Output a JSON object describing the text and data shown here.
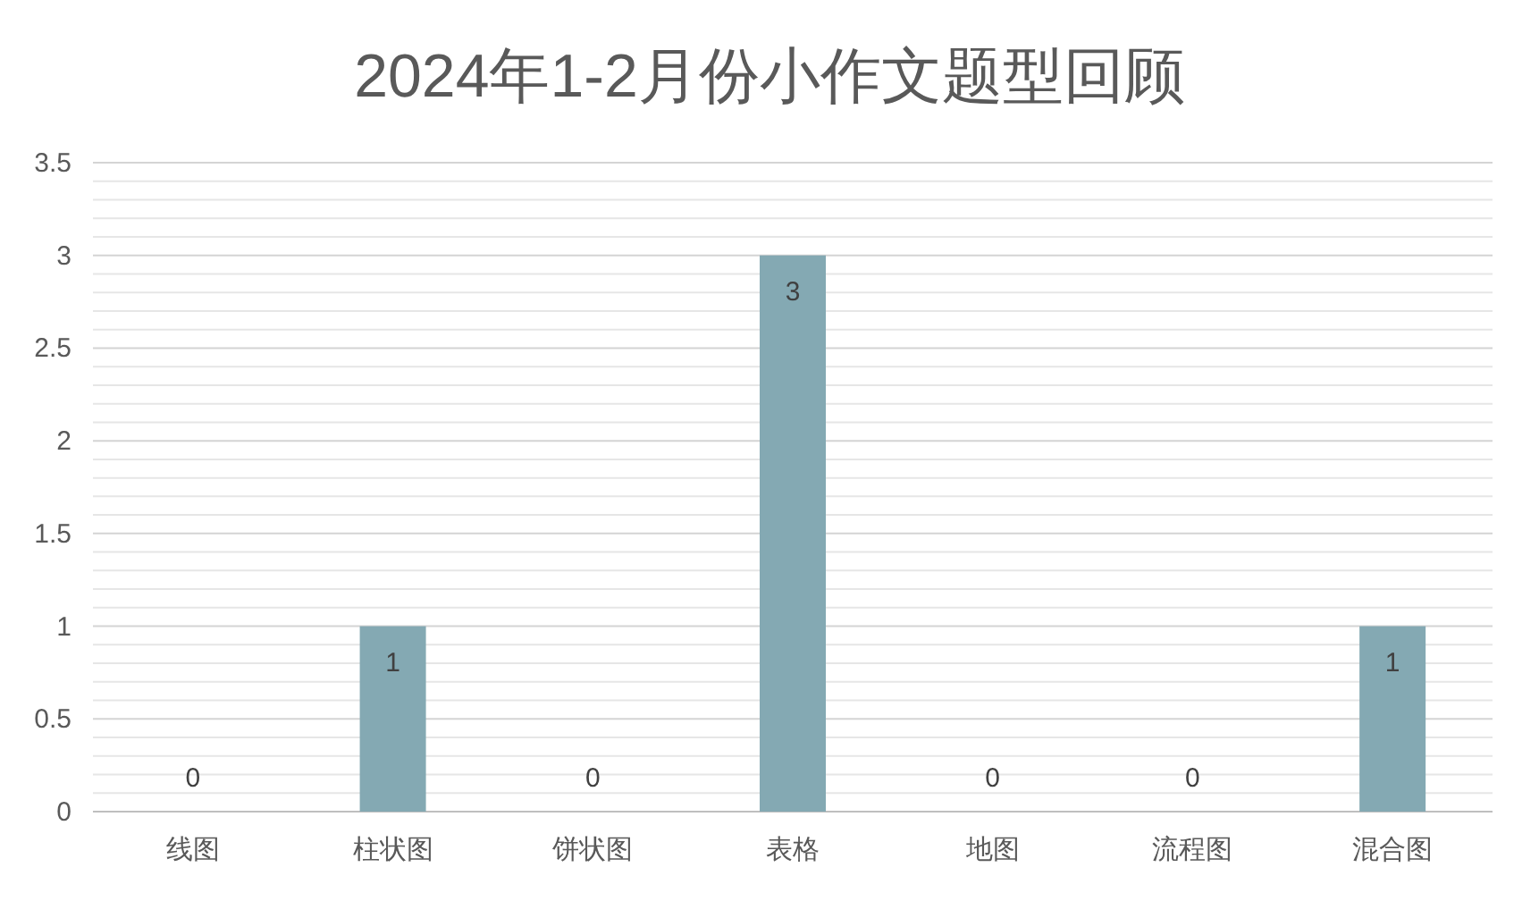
{
  "chart_data": {
    "type": "bar",
    "title": "2024年1-2月份小作文题型回顾",
    "categories": [
      "线图",
      "柱状图",
      "饼状图",
      "表格",
      "地图",
      "流程图",
      "混合图"
    ],
    "values": [
      0,
      1,
      0,
      3,
      0,
      0,
      1
    ],
    "color": "#84a9b3",
    "ylim": [
      0,
      3.5
    ],
    "yticks": [
      0,
      {
        "value": 0.1,
        "label": null
      },
      {
        "value": 0.2,
        "label": null
      },
      {
        "value": 0.3,
        "label": null
      },
      {
        "value": 0.4,
        "label": null
      },
      0.5,
      {
        "value": 0.6,
        "label": null
      },
      {
        "value": 0.7,
        "label": null
      },
      {
        "value": 0.8,
        "label": null
      },
      {
        "value": 0.9,
        "label": null
      },
      1,
      {
        "value": 1.1,
        "label": null
      },
      {
        "value": 1.2,
        "label": null
      },
      {
        "value": 1.3,
        "label": null
      },
      {
        "value": 1.4,
        "label": null
      },
      1.5,
      {
        "value": 1.6,
        "label": null
      },
      {
        "value": 1.7,
        "label": null
      },
      {
        "value": 1.8,
        "label": null
      },
      {
        "value": 1.9,
        "label": null
      },
      2,
      {
        "value": 2.1,
        "label": null
      },
      {
        "value": 2.2,
        "label": null
      },
      {
        "value": 2.3,
        "label": null
      },
      {
        "value": 2.4,
        "label": null
      },
      2.5,
      {
        "value": 2.6,
        "label": null
      },
      {
        "value": 2.7,
        "label": null
      },
      {
        "value": 2.8,
        "label": null
      },
      {
        "value": 2.9,
        "label": null
      },
      3,
      {
        "value": 3.1,
        "label": null
      },
      {
        "value": 3.2,
        "label": null
      },
      {
        "value": 3.3,
        "label": null
      },
      {
        "value": 3.4,
        "label": null
      },
      3.5
    ],
    "grid": "y",
    "data_labels": true
  }
}
